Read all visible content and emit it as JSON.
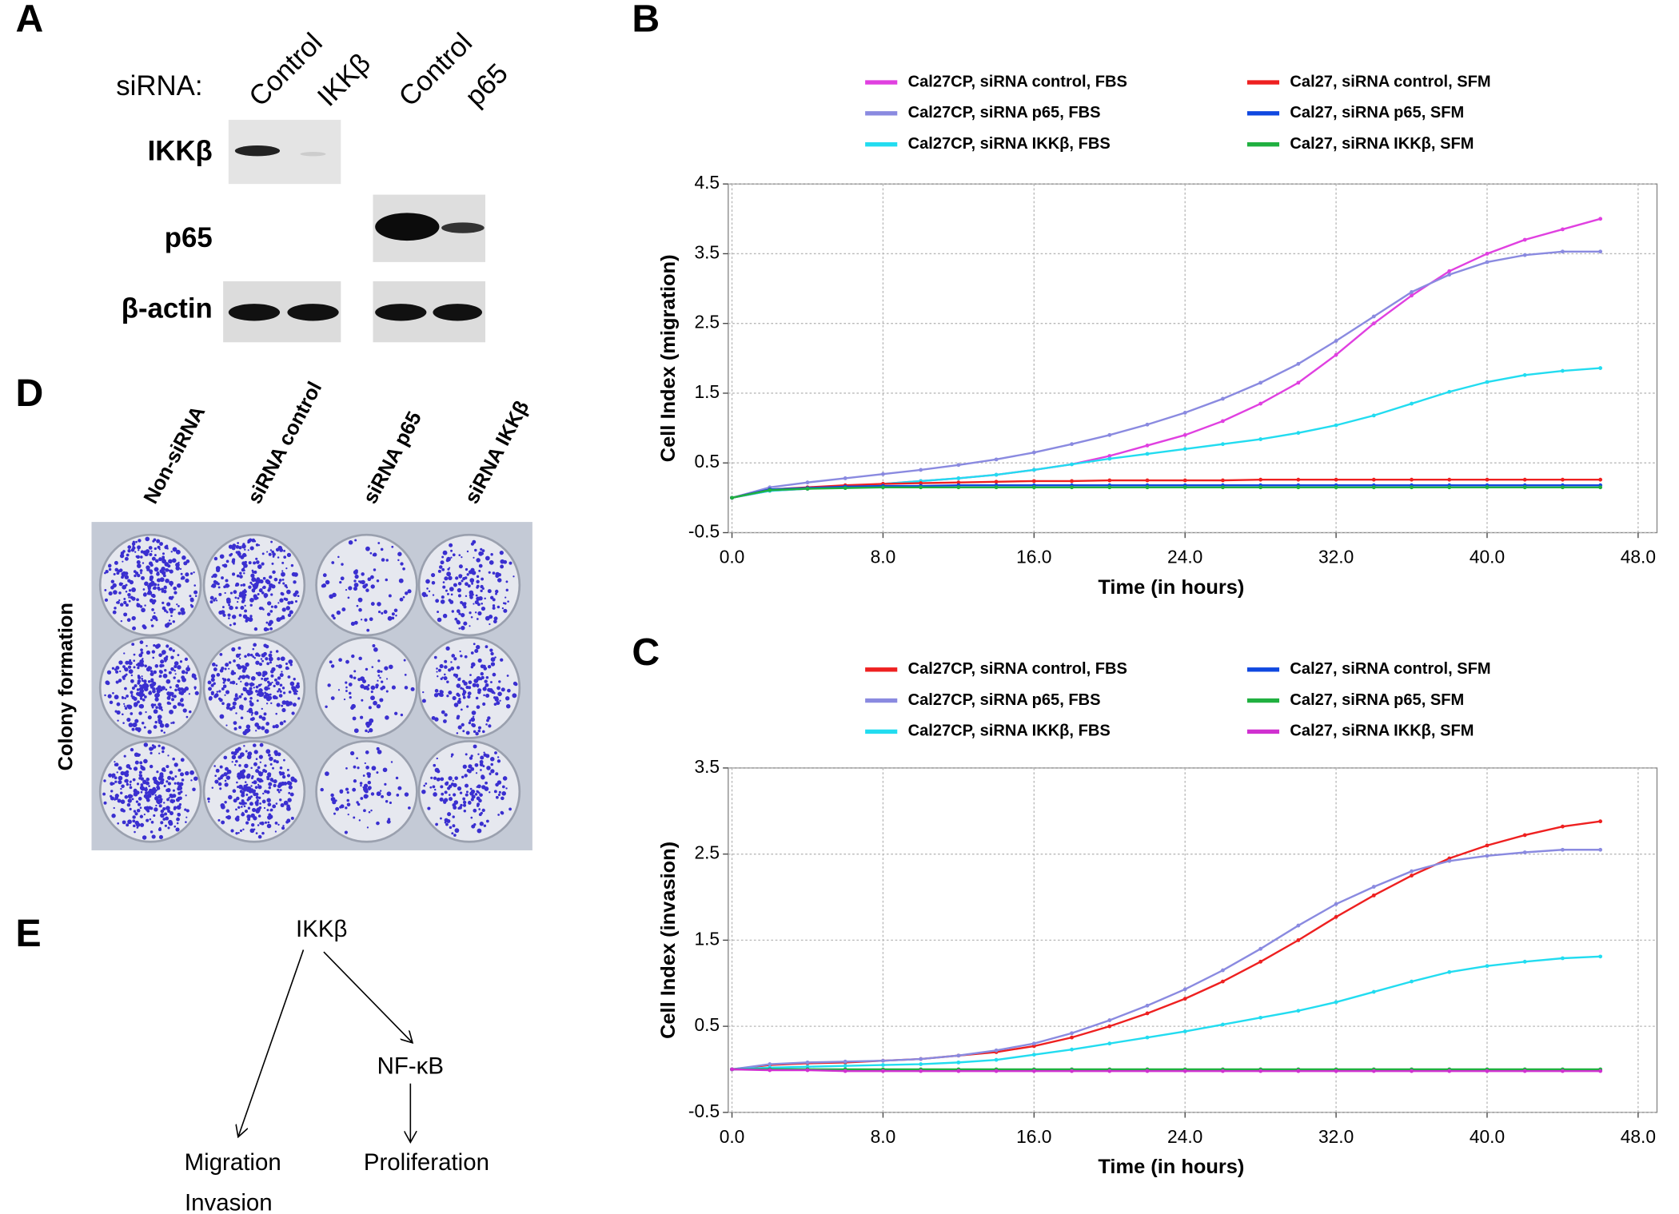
{
  "panel_a": {
    "label": "A",
    "sirna_label": "siRNA:",
    "lanes": [
      "Control",
      "IKKβ",
      "Control",
      "p65"
    ],
    "rows": [
      "IKKβ",
      "p65",
      "β-actin"
    ]
  },
  "panel_d": {
    "label": "D",
    "columns": [
      "Non-siRNA",
      "siRNA control",
      "siRNA p65",
      "siRNA IKKβ"
    ],
    "side_label": "Colony formation"
  },
  "panel_e": {
    "label": "E",
    "nodes": [
      "IKKβ",
      "NF-κB",
      "Migration",
      "Invasion",
      "Proliferation"
    ]
  },
  "chart_data": [
    {
      "type": "line",
      "panel_label": "B",
      "x_label": "Time (in hours)",
      "y_label": "Cell Index (migration)",
      "x": [
        0,
        2,
        4,
        6,
        8,
        10,
        12,
        14,
        16,
        18,
        20,
        22,
        24,
        26,
        28,
        30,
        32,
        34,
        36,
        38,
        40,
        42,
        44,
        46
      ],
      "xlim": [
        -0.2,
        49
      ],
      "ylim": [
        -0.5,
        4.5
      ],
      "xticks": [
        {
          "value": 0,
          "label": "0.0"
        },
        {
          "value": 8,
          "label": "8.0"
        },
        {
          "value": 16,
          "label": "16.0"
        },
        {
          "value": 24,
          "label": "24.0"
        },
        {
          "value": 32,
          "label": "32.0"
        },
        {
          "value": 40,
          "label": "40.0"
        },
        {
          "value": 48,
          "label": "48.0"
        }
      ],
      "yticks": [
        -0.5,
        0.5,
        1.5,
        2.5,
        3.5,
        4.5
      ],
      "grid": true,
      "series": [
        {
          "name": "Cal27CP, siRNA control, FBS",
          "color": "#e040e0",
          "values": [
            0,
            0.1,
            0.13,
            0.16,
            0.2,
            0.24,
            0.28,
            0.33,
            0.4,
            0.48,
            0.6,
            0.75,
            0.9,
            1.1,
            1.35,
            1.65,
            2.05,
            2.5,
            2.9,
            3.25,
            3.5,
            3.7,
            3.85,
            4.0
          ]
        },
        {
          "name": "Cal27CP, siRNA p65, FBS",
          "color": "#8a8ae0",
          "values": [
            0,
            0.15,
            0.22,
            0.28,
            0.34,
            0.4,
            0.47,
            0.55,
            0.65,
            0.77,
            0.9,
            1.05,
            1.22,
            1.42,
            1.65,
            1.92,
            2.25,
            2.6,
            2.95,
            3.2,
            3.38,
            3.48,
            3.53,
            3.53
          ]
        },
        {
          "name": "Cal27CP, siRNA IKKβ, FBS",
          "color": "#22dcf0",
          "values": [
            0,
            0.1,
            0.13,
            0.16,
            0.2,
            0.24,
            0.28,
            0.33,
            0.4,
            0.48,
            0.56,
            0.63,
            0.7,
            0.77,
            0.84,
            0.93,
            1.04,
            1.18,
            1.35,
            1.52,
            1.66,
            1.76,
            1.82,
            1.86
          ]
        },
        {
          "name": "Cal27, siRNA control,  SFM",
          "color": "#ee2020",
          "values": [
            0,
            0.12,
            0.15,
            0.18,
            0.2,
            0.21,
            0.22,
            0.23,
            0.24,
            0.24,
            0.25,
            0.25,
            0.25,
            0.25,
            0.26,
            0.26,
            0.26,
            0.26,
            0.26,
            0.26,
            0.26,
            0.26,
            0.26,
            0.26
          ]
        },
        {
          "name": "Cal27, siRNA p65, SFM",
          "color": "#1048e0",
          "values": [
            0,
            0.12,
            0.14,
            0.16,
            0.17,
            0.17,
            0.18,
            0.18,
            0.18,
            0.18,
            0.18,
            0.18,
            0.18,
            0.18,
            0.18,
            0.18,
            0.18,
            0.18,
            0.18,
            0.18,
            0.18,
            0.18,
            0.18,
            0.18
          ]
        },
        {
          "name": "Cal27, siRNA IKKβ,  SFM",
          "color": "#20b040",
          "values": [
            0,
            0.11,
            0.13,
            0.14,
            0.15,
            0.15,
            0.15,
            0.15,
            0.15,
            0.15,
            0.15,
            0.15,
            0.15,
            0.15,
            0.15,
            0.15,
            0.15,
            0.15,
            0.15,
            0.15,
            0.15,
            0.15,
            0.15,
            0.15
          ]
        }
      ]
    },
    {
      "type": "line",
      "panel_label": "C",
      "x_label": "Time (in hours)",
      "y_label": "Cell Index (invasion)",
      "x": [
        0,
        2,
        4,
        6,
        8,
        10,
        12,
        14,
        16,
        18,
        20,
        22,
        24,
        26,
        28,
        30,
        32,
        34,
        36,
        38,
        40,
        42,
        44,
        46
      ],
      "xlim": [
        -0.2,
        49
      ],
      "ylim": [
        -0.5,
        3.5
      ],
      "xticks": [
        {
          "value": 0,
          "label": "0.0"
        },
        {
          "value": 8,
          "label": "8.0"
        },
        {
          "value": 16,
          "label": "16.0"
        },
        {
          "value": 24,
          "label": "24.0"
        },
        {
          "value": 32,
          "label": "32.0"
        },
        {
          "value": 40,
          "label": "40.0"
        },
        {
          "value": 48,
          "label": "48.0"
        }
      ],
      "yticks": [
        -0.5,
        0.5,
        1.5,
        2.5,
        3.5
      ],
      "grid": true,
      "series": [
        {
          "name": "Cal27CP, siRNA control, FBS",
          "color": "#ee2020",
          "values": [
            0,
            0.05,
            0.07,
            0.08,
            0.1,
            0.12,
            0.16,
            0.2,
            0.27,
            0.37,
            0.5,
            0.65,
            0.82,
            1.02,
            1.25,
            1.5,
            1.77,
            2.02,
            2.25,
            2.45,
            2.6,
            2.72,
            2.82,
            2.88
          ]
        },
        {
          "name": "Cal27CP, siRNA p65, FBS",
          "color": "#8a8ae0",
          "values": [
            0,
            0.06,
            0.08,
            0.09,
            0.1,
            0.12,
            0.16,
            0.22,
            0.3,
            0.42,
            0.57,
            0.74,
            0.93,
            1.15,
            1.4,
            1.67,
            1.92,
            2.12,
            2.3,
            2.42,
            2.48,
            2.52,
            2.55,
            2.55
          ]
        },
        {
          "name": "Cal27CP, siRNA IKKβ, FBS",
          "color": "#22dcf0",
          "values": [
            0,
            0.02,
            0.03,
            0.04,
            0.05,
            0.06,
            0.08,
            0.11,
            0.17,
            0.23,
            0.3,
            0.37,
            0.44,
            0.52,
            0.6,
            0.68,
            0.78,
            0.9,
            1.02,
            1.13,
            1.2,
            1.25,
            1.29,
            1.31
          ]
        },
        {
          "name": "Cal27, siRNA control,  SFM",
          "color": "#1048e0",
          "values": [
            0,
            0,
            0,
            -0.01,
            -0.01,
            -0.01,
            -0.01,
            -0.01,
            -0.01,
            -0.01,
            -0.01,
            -0.01,
            -0.01,
            -0.01,
            -0.01,
            -0.01,
            -0.01,
            -0.01,
            -0.01,
            -0.01,
            -0.01,
            -0.01,
            -0.01,
            -0.01
          ]
        },
        {
          "name": "Cal27, siRNA p65, SFM",
          "color": "#20b040",
          "values": [
            0,
            0,
            0,
            0,
            0,
            0,
            0,
            0,
            0,
            0,
            0,
            0,
            0,
            0,
            0,
            0,
            0,
            0,
            0,
            0,
            0,
            0,
            0,
            0
          ]
        },
        {
          "name": "Cal27, siRNA IKKβ, SFM",
          "color": "#d030d0",
          "values": [
            0,
            -0.01,
            -0.01,
            -0.02,
            -0.02,
            -0.02,
            -0.02,
            -0.02,
            -0.02,
            -0.02,
            -0.02,
            -0.02,
            -0.02,
            -0.02,
            -0.02,
            -0.02,
            -0.02,
            -0.02,
            -0.02,
            -0.02,
            -0.02,
            -0.02,
            -0.02,
            -0.02
          ]
        }
      ]
    }
  ]
}
